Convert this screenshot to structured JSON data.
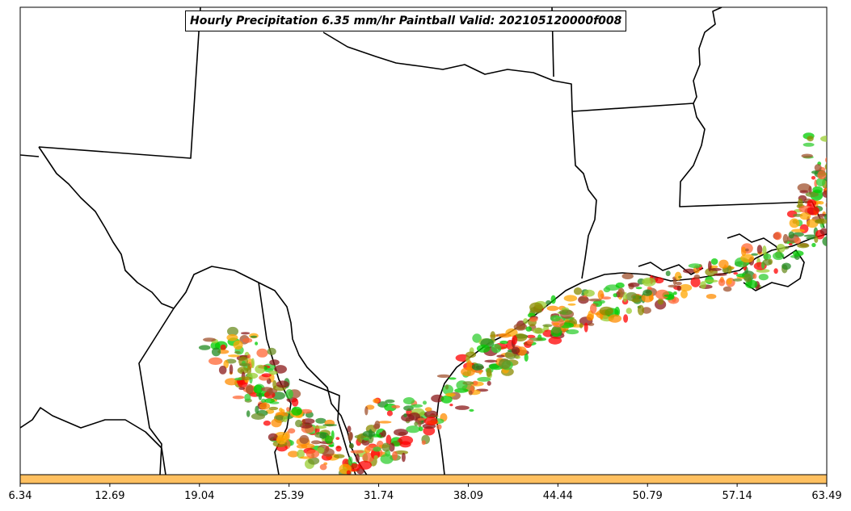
{
  "map": {
    "title": "Hourly Precipitation 6.35 mm/hr Paintball Valid: 202105120000f008",
    "region": "Texas / Gulf Coast"
  },
  "colorbar": {
    "ticks": [
      "6.34",
      "12.69",
      "19.04",
      "25.39",
      "31.74",
      "38.09",
      "44.44",
      "50.79",
      "57.14",
      "63.49"
    ],
    "fill_color": "#ffc060"
  },
  "paintball_colors": [
    "#8b1a1a",
    "#a0522d",
    "#ff0000",
    "#ff6633",
    "#ff8c00",
    "#ffa500",
    "#8b8b00",
    "#9acd32",
    "#6b8e23",
    "#00cc00",
    "#32cd32",
    "#228b22"
  ]
}
